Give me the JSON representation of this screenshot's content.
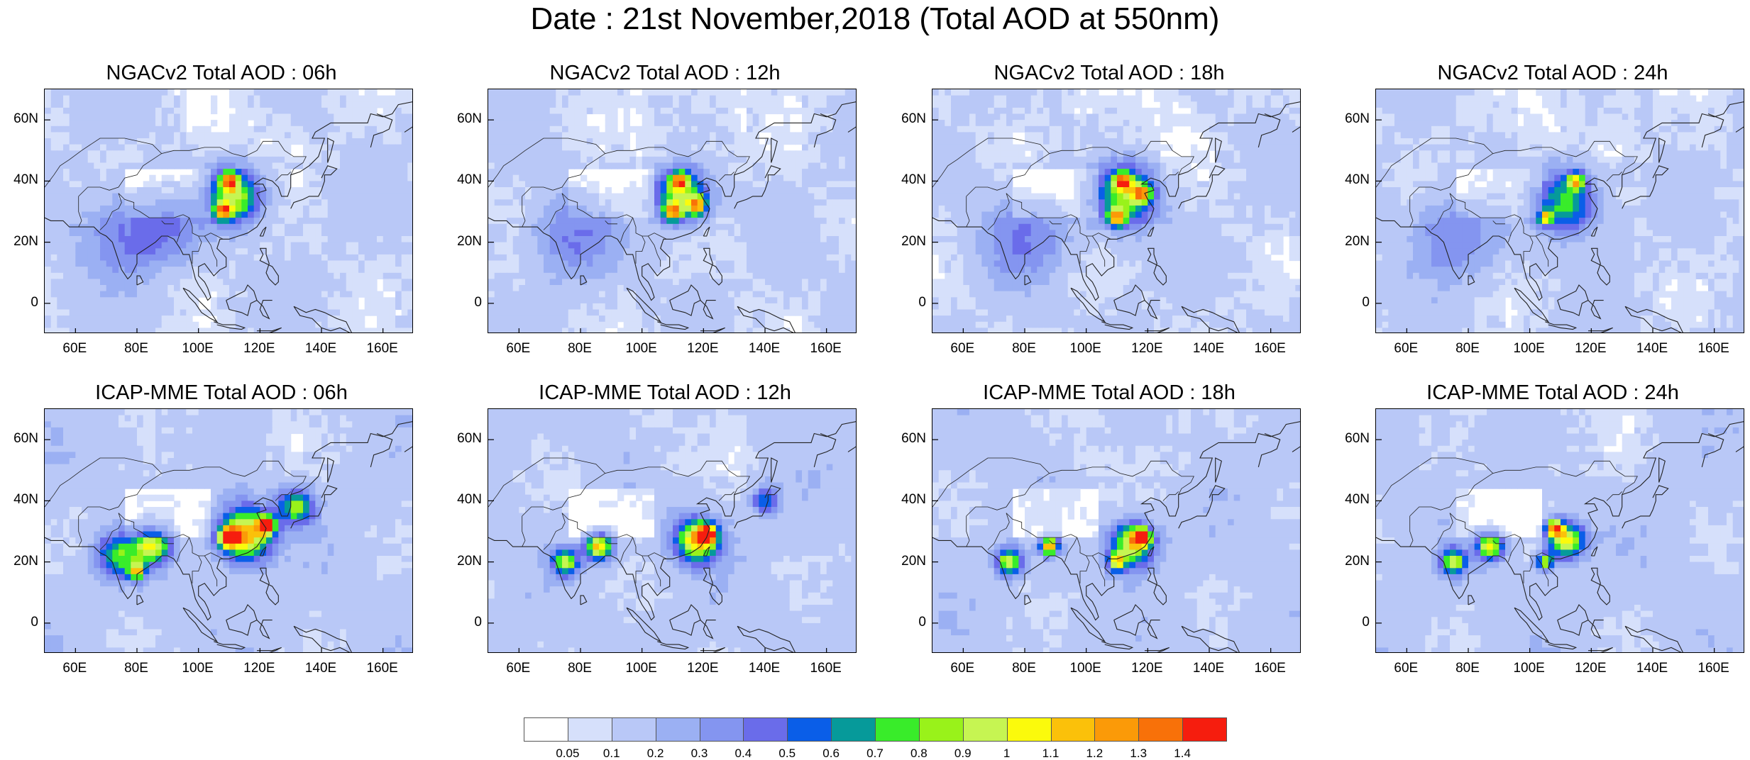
{
  "title": "Date : 21st November,2018 (Total AOD at 550nm)",
  "axes": {
    "lat_labels": [
      "60N",
      "40N",
      "20N",
      "0"
    ],
    "lon_labels": [
      "60E",
      "80E",
      "100E",
      "120E",
      "140E",
      "160E"
    ]
  },
  "panels": [
    {
      "title": "NGACv2 Total AOD : 06h",
      "model": "NGACv2",
      "hour": "06h"
    },
    {
      "title": "NGACv2 Total AOD : 12h",
      "model": "NGACv2",
      "hour": "12h"
    },
    {
      "title": "NGACv2 Total AOD : 18h",
      "model": "NGACv2",
      "hour": "18h"
    },
    {
      "title": "NGACv2 Total AOD : 24h",
      "model": "NGACv2",
      "hour": "24h"
    },
    {
      "title": "ICAP-MME Total AOD : 06h",
      "model": "ICAP-MME",
      "hour": "06h"
    },
    {
      "title": "ICAP-MME Total AOD : 12h",
      "model": "ICAP-MME",
      "hour": "12h"
    },
    {
      "title": "ICAP-MME Total AOD : 18h",
      "model": "ICAP-MME",
      "hour": "18h"
    },
    {
      "title": "ICAP-MME Total AOD : 24h",
      "model": "ICAP-MME",
      "hour": "24h"
    }
  ],
  "colorbar": {
    "labels": [
      "0.05",
      "0.1",
      "0.2",
      "0.3",
      "0.4",
      "0.5",
      "0.6",
      "0.7",
      "0.8",
      "0.9",
      "1",
      "1.1",
      "1.2",
      "1.3",
      "1.4"
    ],
    "colors": [
      "#ffffff",
      "#d6e0fb",
      "#b9c8f7",
      "#9bb0f3",
      "#8495f0",
      "#6a6cea",
      "#0a5ee8",
      "#069a9a",
      "#39ec2a",
      "#99f21a",
      "#c6f552",
      "#fbfa0c",
      "#fbc10a",
      "#fb9a08",
      "#f87109",
      "#f61d0e"
    ]
  },
  "chart_data": {
    "type": "heatmap",
    "title": "Date : 21st November,2018 (Total AOD at 550nm)",
    "variable": "Total AOD at 550nm",
    "date": "21st November,2018",
    "lon_range_deg_E": [
      50,
      170
    ],
    "lat_range_deg_N": [
      -10,
      70
    ],
    "panels": [
      {
        "title": "NGACv2 Total AOD : 06h",
        "hotspots": [
          {
            "lon": 112,
            "lat": 35,
            "aod": 0.8,
            "spread": 6
          },
          {
            "lon": 110,
            "lat": 40,
            "aod": 0.9,
            "spread": 2
          },
          {
            "lon": 108,
            "lat": 30,
            "aod": 0.85,
            "spread": 2
          },
          {
            "lon": 75,
            "lat": 22,
            "aod": 0.28,
            "spread": 10
          },
          {
            "lon": 90,
            "lat": 25,
            "aod": 0.25,
            "spread": 8
          }
        ]
      },
      {
        "title": "NGACv2 Total AOD : 12h",
        "hotspots": [
          {
            "lon": 113,
            "lat": 35,
            "aod": 0.8,
            "spread": 6
          },
          {
            "lon": 112,
            "lat": 40,
            "aod": 0.9,
            "spread": 2
          },
          {
            "lon": 110,
            "lat": 30,
            "aod": 0.85,
            "spread": 2
          },
          {
            "lon": 118,
            "lat": 32,
            "aod": 0.8,
            "spread": 2
          },
          {
            "lon": 78,
            "lat": 22,
            "aod": 0.28,
            "spread": 10
          }
        ]
      },
      {
        "title": "NGACv2 Total AOD : 18h",
        "hotspots": [
          {
            "lon": 113,
            "lat": 35,
            "aod": 0.75,
            "spread": 7
          },
          {
            "lon": 112,
            "lat": 40,
            "aod": 0.85,
            "spread": 2
          },
          {
            "lon": 110,
            "lat": 28,
            "aod": 0.85,
            "spread": 2
          },
          {
            "lon": 118,
            "lat": 36,
            "aod": 0.8,
            "spread": 2
          },
          {
            "lon": 80,
            "lat": 22,
            "aod": 0.28,
            "spread": 10
          }
        ]
      },
      {
        "title": "NGACv2 Total AOD : 24h",
        "hotspots": [
          {
            "lon": 112,
            "lat": 33,
            "aod": 0.65,
            "spread": 7
          },
          {
            "lon": 115,
            "lat": 40,
            "aod": 0.8,
            "spread": 2
          },
          {
            "lon": 105,
            "lat": 28,
            "aod": 0.85,
            "spread": 1.5
          },
          {
            "lon": 75,
            "lat": 22,
            "aod": 0.28,
            "spread": 10
          }
        ]
      },
      {
        "title": "ICAP-MME Total AOD : 06h",
        "hotspots": [
          {
            "lon": 115,
            "lat": 29,
            "aod": 1.1,
            "spread": 6
          },
          {
            "lon": 110,
            "lat": 28,
            "aod": 1.35,
            "spread": 2
          },
          {
            "lon": 122,
            "lat": 32,
            "aod": 1.2,
            "spread": 2
          },
          {
            "lon": 132,
            "lat": 38,
            "aod": 0.7,
            "spread": 4
          },
          {
            "lon": 85,
            "lat": 25,
            "aod": 0.85,
            "spread": 4
          },
          {
            "lon": 74,
            "lat": 22,
            "aod": 0.6,
            "spread": 5
          },
          {
            "lon": 80,
            "lat": 17,
            "aod": 0.8,
            "spread": 2
          }
        ]
      },
      {
        "title": "ICAP-MME Total AOD : 12h",
        "hotspots": [
          {
            "lon": 118,
            "lat": 27,
            "aod": 1.0,
            "spread": 5
          },
          {
            "lon": 121,
            "lat": 29,
            "aod": 1.15,
            "spread": 2
          },
          {
            "lon": 86,
            "lat": 25,
            "aod": 1.0,
            "spread": 3
          },
          {
            "lon": 75,
            "lat": 20,
            "aod": 0.8,
            "spread": 3
          },
          {
            "lon": 140,
            "lat": 40,
            "aod": 0.5,
            "spread": 3
          }
        ]
      },
      {
        "title": "ICAP-MME Total AOD : 18h",
        "hotspots": [
          {
            "lon": 115,
            "lat": 26,
            "aod": 0.9,
            "spread": 5
          },
          {
            "lon": 118,
            "lat": 28,
            "aod": 1.0,
            "spread": 2
          },
          {
            "lon": 88,
            "lat": 25,
            "aod": 1.15,
            "spread": 2
          },
          {
            "lon": 75,
            "lat": 20,
            "aod": 0.85,
            "spread": 3
          },
          {
            "lon": 110,
            "lat": 20,
            "aod": 0.85,
            "spread": 2
          }
        ]
      },
      {
        "title": "ICAP-MME Total AOD : 24h",
        "hotspots": [
          {
            "lon": 112,
            "lat": 27,
            "aod": 0.95,
            "spread": 4
          },
          {
            "lon": 108,
            "lat": 31,
            "aod": 1.05,
            "spread": 2
          },
          {
            "lon": 87,
            "lat": 25,
            "aod": 0.95,
            "spread": 3
          },
          {
            "lon": 75,
            "lat": 20,
            "aod": 0.8,
            "spread": 3
          },
          {
            "lon": 105,
            "lat": 20,
            "aod": 0.8,
            "spread": 2
          }
        ]
      }
    ]
  }
}
